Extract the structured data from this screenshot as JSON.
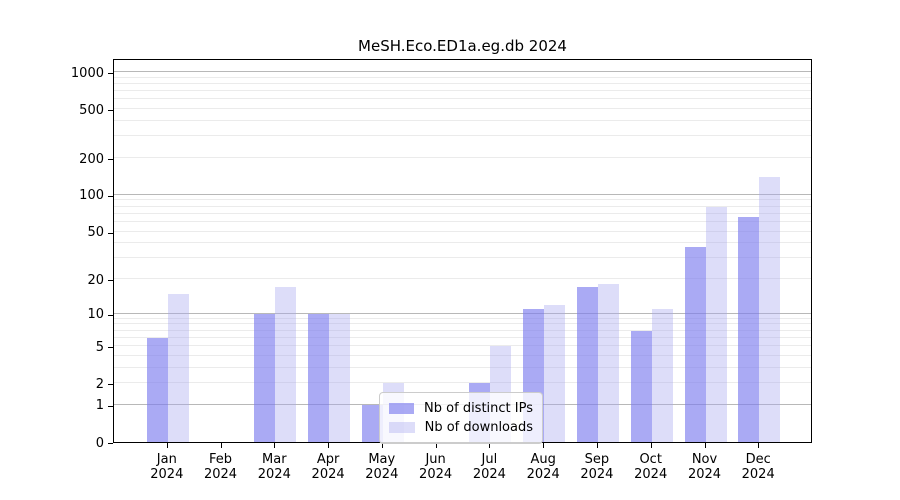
{
  "chart_data": {
    "type": "bar",
    "title": "MeSH.Eco.ED1a.eg.db 2024",
    "year_label": "2024",
    "categories": [
      "Jan",
      "Feb",
      "Mar",
      "Apr",
      "May",
      "Jun",
      "Jul",
      "Aug",
      "Sep",
      "Oct",
      "Nov",
      "Dec"
    ],
    "series": [
      {
        "name": "Nb of distinct IPs",
        "color": "rgba(125,125,238,0.65)",
        "values": [
          6,
          0,
          10,
          10,
          1,
          0,
          2,
          11,
          17,
          7,
          37,
          66
        ]
      },
      {
        "name": "Nb of downloads",
        "color": "rgba(165,165,240,0.38)",
        "values": [
          15,
          0,
          17,
          10,
          2,
          0,
          5,
          12,
          18,
          11,
          80,
          140
        ]
      }
    ],
    "y_ticks": [
      0,
      1,
      2,
      5,
      10,
      20,
      50,
      100,
      200,
      500,
      1000
    ],
    "ylabel": "",
    "xlabel": "",
    "scale": "log10(value+1)",
    "ylim": [
      0,
      1300
    ],
    "grid": "on",
    "legend_position": "lower center",
    "colors": {
      "major_grid": "#b8b8b8",
      "minor_grid": "#ebebeb",
      "distinct_ips_bar": "#aaaaf9",
      "downloads_bar": "#dddef9"
    }
  }
}
